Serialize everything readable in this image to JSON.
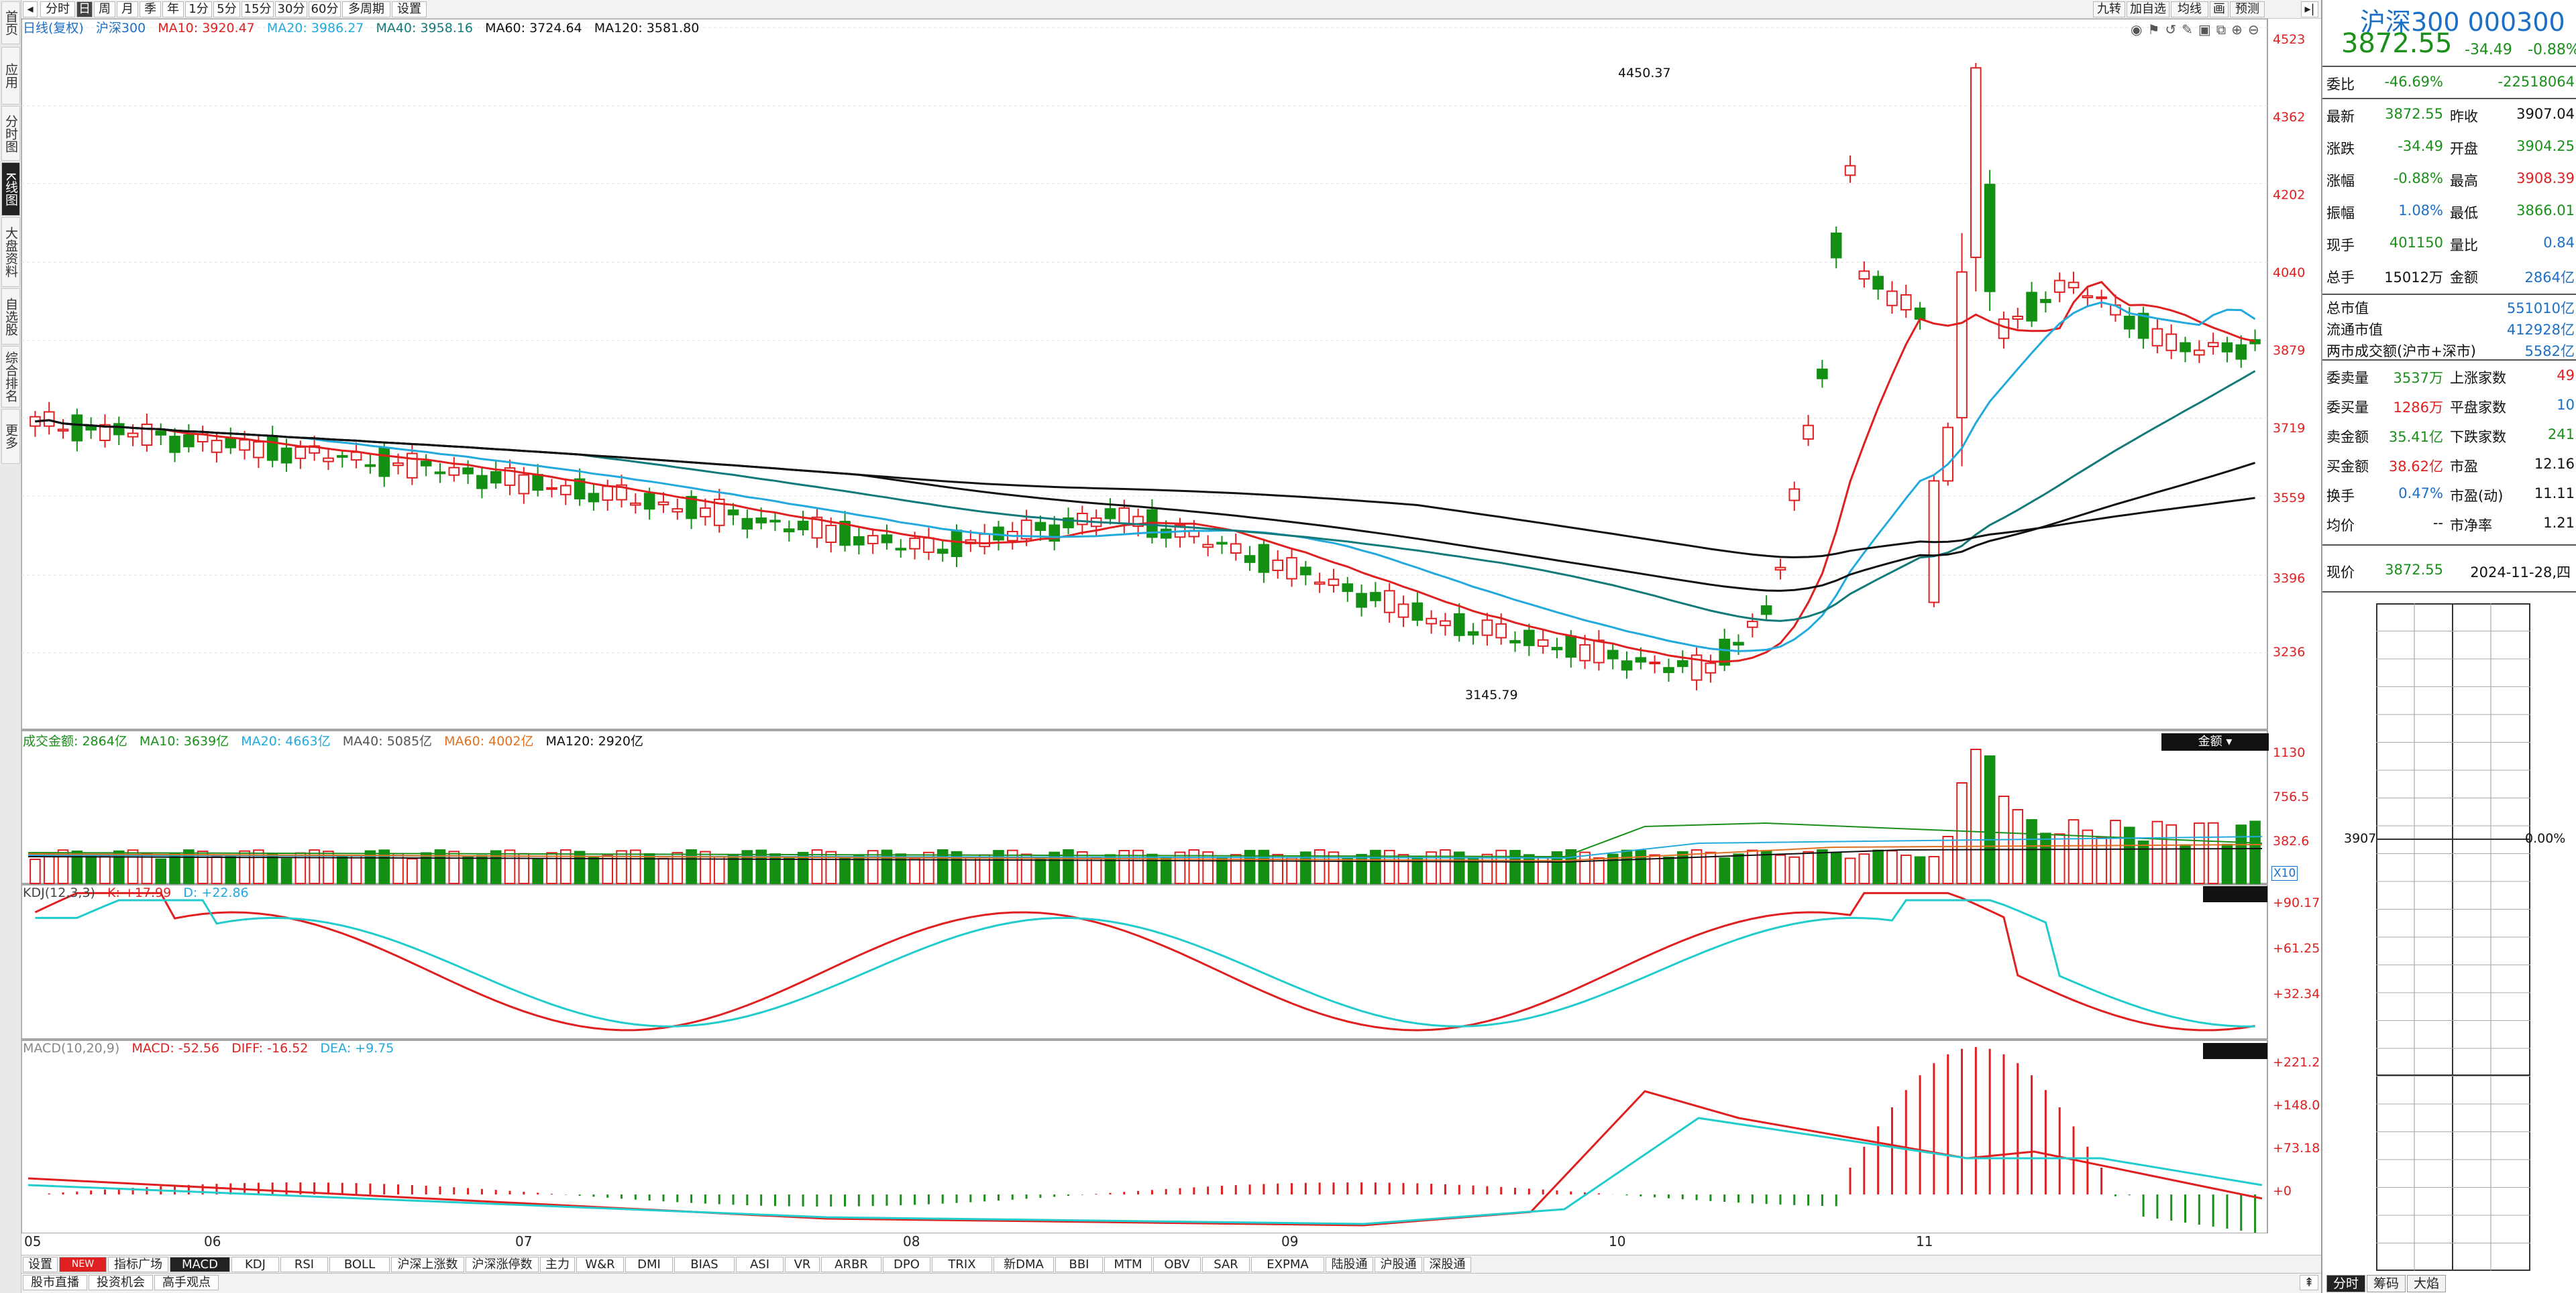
{
  "sidebar": {
    "items": [
      {
        "label": "首页",
        "active": false
      },
      {
        "label": "应用",
        "active": false
      },
      {
        "label": "分时图",
        "active": false
      },
      {
        "label": "K线图",
        "active": true
      },
      {
        "label": "大盘资料",
        "active": false
      },
      {
        "label": "自选股",
        "active": false
      },
      {
        "label": "综合排名",
        "active": false
      },
      {
        "label": "更多",
        "active": false
      }
    ]
  },
  "toolbar": {
    "periods": [
      "分时",
      "日",
      "周",
      "月",
      "季",
      "年",
      "1分",
      "5分",
      "15分",
      "30分",
      "60分",
      "多周期",
      "设置"
    ],
    "active_period": "日",
    "right_buttons": [
      "九转",
      "加自选",
      "均线",
      "画",
      "预测"
    ]
  },
  "main_chart": {
    "caption": {
      "period": "日线(复权)",
      "name": "沪深300",
      "ma10": "MA10: 3920.47",
      "ma20": "MA20: 3986.27",
      "ma40": "MA40: 3958.16",
      "ma60": "MA60: 3724.64",
      "ma120": "MA120: 3581.80"
    },
    "yaxis": [
      "4523",
      "4362",
      "4202",
      "4040",
      "3879",
      "3719",
      "3559",
      "3396",
      "3236"
    ],
    "high_label": "4450.37",
    "low_label": "3145.79",
    "colors": {
      "up": "#e02020",
      "down": "#138f13",
      "ma10": "#e02020",
      "ma20": "#22aadd",
      "ma40": "#137a7a",
      "ma60": "#111111",
      "ma120": "#111111"
    }
  },
  "volume_chart": {
    "caption": {
      "name": "成交金额: 2864亿",
      "ma10": "MA10: 3639亿",
      "ma20": "MA20: 4663亿",
      "ma40": "MA40: 5085亿",
      "ma60": "MA60: 4002亿",
      "ma120": "MA120: 2920亿"
    },
    "badge": "金额",
    "yaxis": [
      "1130",
      "756.5",
      "382.6"
    ],
    "unit": "X10"
  },
  "kdj_chart": {
    "caption": {
      "name": "KDJ(12,3,3)",
      "k": "K: +17.99",
      "d": "D: +22.86"
    },
    "yaxis": [
      "+90.17",
      "+61.25",
      "+32.34"
    ]
  },
  "macd_chart": {
    "caption": {
      "name": "MACD(10,20,9)",
      "macd": "MACD: -52.56",
      "diff": "DIFF: -16.52",
      "dea": "DEA: +9.75"
    },
    "yaxis": [
      "+221.2",
      "+148.0",
      "+73.18",
      "+0"
    ]
  },
  "months": [
    "05",
    "06",
    "07",
    "08",
    "09",
    "10",
    "11"
  ],
  "indicator_tabs": [
    "设置",
    "NEW",
    "指标广场",
    "MACD",
    "KDJ",
    "RSI",
    "BOLL",
    "沪深上涨数",
    "沪深涨停数",
    "主力",
    "W&R",
    "DMI",
    "BIAS",
    "ASI",
    "VR",
    "ARBR",
    "DPO",
    "TRIX",
    "新DMA",
    "BBI",
    "MTM",
    "OBV",
    "SAR",
    "EXPMA",
    "陆股通",
    "沪股通",
    "深股通"
  ],
  "active_indicator": "MACD",
  "bottom_links": [
    "股市直播",
    "投资机会",
    "高手观点"
  ],
  "quote_panel": {
    "title": "沪深300 000300",
    "price": "3872.55",
    "change": "-34.49",
    "change_pct": "-0.88%",
    "weibi": {
      "label": "委比",
      "pct": "-46.69%",
      "val": "-22518064"
    },
    "rows1": [
      {
        "l1": "最新",
        "v1": "3872.55",
        "c1": "g",
        "l2": "昨收",
        "v2": "3907.04",
        "c2": "k"
      },
      {
        "l1": "涨跌",
        "v1": "-34.49",
        "c1": "g",
        "l2": "开盘",
        "v2": "3904.25",
        "c2": "g"
      },
      {
        "l1": "涨幅",
        "v1": "-0.88%",
        "c1": "g",
        "l2": "最高",
        "v2": "3908.39",
        "c2": "r"
      },
      {
        "l1": "振幅",
        "v1": "1.08%",
        "c1": "b",
        "l2": "最低",
        "v2": "3866.01",
        "c2": "g"
      },
      {
        "l1": "现手",
        "v1": "401150",
        "c1": "g",
        "l2": "量比",
        "v2": "0.84",
        "c2": "b"
      },
      {
        "l1": "总手",
        "v1": "15012万",
        "c1": "k",
        "l2": "金额",
        "v2": "2864亿",
        "c2": "b"
      }
    ],
    "rows2": [
      {
        "l": "总市值",
        "v": "551010亿"
      },
      {
        "l": "流通市值",
        "v": "412928亿"
      },
      {
        "l": "两市成交额(沪市+深市)",
        "v": "5582亿"
      }
    ],
    "rows3": [
      {
        "l1": "委卖量",
        "v1": "3537万",
        "c1": "g",
        "l2": "上涨家数",
        "v2": "49",
        "c2": "r"
      },
      {
        "l1": "委买量",
        "v1": "1286万",
        "c1": "r",
        "l2": "平盘家数",
        "v2": "10",
        "c2": "b"
      },
      {
        "l1": "卖金额",
        "v1": "35.41亿",
        "c1": "g",
        "l2": "下跌家数",
        "v2": "241",
        "c2": "g"
      },
      {
        "l1": "买金额",
        "v1": "38.62亿",
        "c1": "r",
        "l2": "市盈",
        "v2": "12.16",
        "c2": "k"
      },
      {
        "l1": "换手",
        "v1": "0.47%",
        "c1": "b",
        "l2": "市盈(动)",
        "v2": "11.11",
        "c2": "k"
      },
      {
        "l1": "均价",
        "v1": "--",
        "c1": "k",
        "l2": "市净率",
        "v2": "1.21",
        "c2": "k"
      }
    ],
    "now": {
      "label": "现价",
      "value": "3872.55",
      "date": "2024-11-28,四"
    },
    "mini_left": "3907",
    "mini_right": "0.00%",
    "tabs": [
      "分时",
      "筹码",
      "大焰"
    ]
  }
}
